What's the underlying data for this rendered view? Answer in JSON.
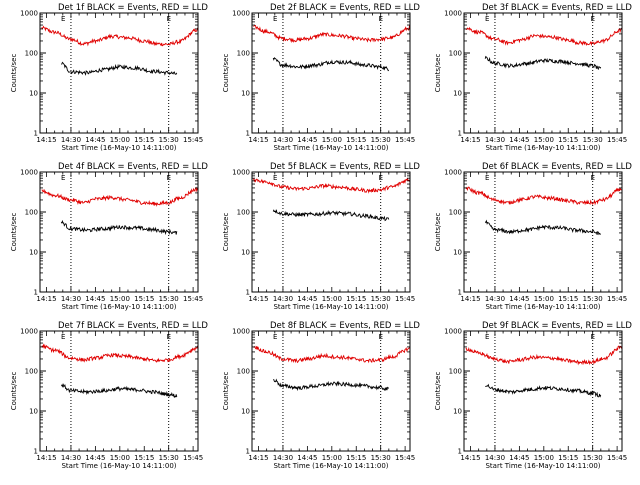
{
  "colors": {
    "events": "#000000",
    "lld": "#e00000",
    "axes": "#000000",
    "background": "#ffffff"
  },
  "shared": {
    "xlabel": "Start Time (16-May-10 14:11:00)",
    "ylabel": "Counts/sec",
    "x_tick_labels": [
      "14:15",
      "14:30",
      "14:45",
      "15:00",
      "15:15",
      "15:30",
      "15:45"
    ],
    "y_tick_labels": [
      "1",
      "10",
      "100",
      "1000"
    ],
    "marker_label": "E",
    "dotted_lines_at": [
      "14:30",
      "15:30"
    ]
  },
  "chart_data": [
    {
      "type": "line",
      "title": "Det 1f BLACK = Events, RED = LLD",
      "xlabel": "Start Time (16-May-10 14:11:00)",
      "ylabel": "Counts/sec",
      "x_range": [
        "14:11",
        "15:48"
      ],
      "ylim": [
        1,
        1000
      ],
      "y_scale": "log",
      "series": [
        {
          "color": "red",
          "x": [
            "14:12",
            "14:20",
            "14:30",
            "14:38",
            "14:45",
            "14:55",
            "15:05",
            "15:15",
            "15:22",
            "15:30",
            "15:36",
            "15:48"
          ],
          "y": [
            420,
            330,
            220,
            170,
            200,
            260,
            240,
            200,
            170,
            165,
            190,
            380
          ]
        },
        {
          "color": "black",
          "x": [
            "14:24",
            "14:30",
            "14:40",
            "14:50",
            "15:00",
            "15:10",
            "15:20",
            "15:30",
            "15:35"
          ],
          "y": [
            55,
            34,
            32,
            38,
            45,
            42,
            35,
            32,
            30
          ]
        }
      ]
    },
    {
      "type": "line",
      "title": "Det 2f BLACK = Events, RED = LLD",
      "xlabel": "Start Time (16-May-10 14:11:00)",
      "ylabel": "Counts/sec",
      "x_range": [
        "14:11",
        "15:48"
      ],
      "ylim": [
        1,
        1000
      ],
      "y_scale": "log",
      "series": [
        {
          "color": "red",
          "x": [
            "14:12",
            "14:20",
            "14:30",
            "14:38",
            "14:45",
            "14:55",
            "15:05",
            "15:15",
            "15:22",
            "15:30",
            "15:36",
            "15:48"
          ],
          "y": [
            450,
            340,
            230,
            210,
            230,
            290,
            270,
            230,
            210,
            220,
            240,
            420
          ]
        },
        {
          "color": "black",
          "x": [
            "14:24",
            "14:30",
            "14:40",
            "14:50",
            "15:00",
            "15:10",
            "15:20",
            "15:30",
            "15:35"
          ],
          "y": [
            70,
            50,
            45,
            50,
            60,
            58,
            50,
            45,
            40
          ]
        }
      ]
    },
    {
      "type": "line",
      "title": "Det 3f BLACK = Events, RED = LLD",
      "xlabel": "Start Time (16-May-10 14:11:00)",
      "ylabel": "Counts/sec",
      "x_range": [
        "14:11",
        "15:48"
      ],
      "ylim": [
        1,
        1000
      ],
      "y_scale": "log",
      "series": [
        {
          "color": "red",
          "x": [
            "14:12",
            "14:20",
            "14:30",
            "14:38",
            "14:45",
            "14:55",
            "15:05",
            "15:15",
            "15:22",
            "15:30",
            "15:36",
            "15:48"
          ],
          "y": [
            420,
            330,
            220,
            180,
            210,
            270,
            250,
            210,
            180,
            170,
            200,
            380
          ]
        },
        {
          "color": "black",
          "x": [
            "14:24",
            "14:30",
            "14:40",
            "14:50",
            "15:00",
            "15:10",
            "15:20",
            "15:30",
            "15:35"
          ],
          "y": [
            75,
            55,
            48,
            55,
            65,
            62,
            55,
            48,
            40
          ]
        }
      ]
    },
    {
      "type": "line",
      "title": "Det 4f BLACK = Events, RED = LLD",
      "xlabel": "Start Time (16-May-10 14:11:00)",
      "ylabel": "Counts/sec",
      "x_range": [
        "14:11",
        "15:48"
      ],
      "ylim": [
        1,
        1000
      ],
      "y_scale": "log",
      "series": [
        {
          "color": "red",
          "x": [
            "14:12",
            "14:20",
            "14:30",
            "14:38",
            "14:45",
            "14:55",
            "15:05",
            "15:15",
            "15:22",
            "15:30",
            "15:36",
            "15:48"
          ],
          "y": [
            340,
            260,
            200,
            170,
            210,
            230,
            200,
            170,
            160,
            170,
            220,
            380
          ]
        },
        {
          "color": "black",
          "x": [
            "14:24",
            "14:30",
            "14:40",
            "14:50",
            "15:00",
            "15:10",
            "15:20",
            "15:30",
            "15:35"
          ],
          "y": [
            55,
            38,
            35,
            38,
            42,
            40,
            36,
            32,
            30
          ]
        }
      ]
    },
    {
      "type": "line",
      "title": "Det 5f BLACK = Events, RED = LLD",
      "xlabel": "Start Time (16-May-10 14:11:00)",
      "ylabel": "Counts/sec",
      "x_range": [
        "14:11",
        "15:48"
      ],
      "ylim": [
        1,
        1000
      ],
      "y_scale": "log",
      "series": [
        {
          "color": "red",
          "x": [
            "14:12",
            "14:20",
            "14:30",
            "14:38",
            "14:45",
            "14:55",
            "15:05",
            "15:15",
            "15:22",
            "15:30",
            "15:36",
            "15:48"
          ],
          "y": [
            650,
            560,
            420,
            380,
            390,
            450,
            420,
            370,
            340,
            360,
            420,
            650
          ]
        },
        {
          "color": "black",
          "x": [
            "14:24",
            "14:30",
            "14:40",
            "14:50",
            "15:00",
            "15:10",
            "15:20",
            "15:30",
            "15:35"
          ],
          "y": [
            110,
            90,
            85,
            88,
            95,
            90,
            80,
            70,
            65
          ]
        }
      ]
    },
    {
      "type": "line",
      "title": "Det 6f BLACK = Events, RED = LLD",
      "xlabel": "Start Time (16-May-10 14:11:00)",
      "ylabel": "Counts/sec",
      "x_range": [
        "14:11",
        "15:48"
      ],
      "ylim": [
        1,
        1000
      ],
      "y_scale": "log",
      "series": [
        {
          "color": "red",
          "x": [
            "14:12",
            "14:20",
            "14:30",
            "14:38",
            "14:45",
            "14:55",
            "15:05",
            "15:15",
            "15:22",
            "15:30",
            "15:36",
            "15:48"
          ],
          "y": [
            400,
            300,
            200,
            170,
            200,
            240,
            220,
            190,
            170,
            170,
            200,
            380
          ]
        },
        {
          "color": "black",
          "x": [
            "14:24",
            "14:30",
            "14:40",
            "14:50",
            "15:00",
            "15:10",
            "15:20",
            "15:30",
            "15:35"
          ],
          "y": [
            55,
            36,
            32,
            36,
            42,
            40,
            35,
            32,
            28
          ]
        }
      ]
    },
    {
      "type": "line",
      "title": "Det 7f BLACK = Events, RED = LLD",
      "xlabel": "Start Time (16-May-10 14:11:00)",
      "ylabel": "Counts/sec",
      "x_range": [
        "14:11",
        "15:48"
      ],
      "ylim": [
        1,
        1000
      ],
      "y_scale": "log",
      "series": [
        {
          "color": "red",
          "x": [
            "14:12",
            "14:20",
            "14:30",
            "14:38",
            "14:45",
            "14:55",
            "15:05",
            "15:15",
            "15:22",
            "15:30",
            "15:36",
            "15:48"
          ],
          "y": [
            420,
            330,
            210,
            190,
            210,
            250,
            230,
            200,
            180,
            190,
            230,
            380
          ]
        },
        {
          "color": "black",
          "x": [
            "14:24",
            "14:30",
            "14:40",
            "14:50",
            "15:00",
            "15:10",
            "15:20",
            "15:30",
            "15:35"
          ],
          "y": [
            45,
            32,
            30,
            32,
            36,
            34,
            30,
            26,
            24
          ]
        }
      ]
    },
    {
      "type": "line",
      "title": "Det 8f BLACK = Events, RED = LLD",
      "xlabel": "Start Time (16-May-10 14:11:00)",
      "ylabel": "Counts/sec",
      "x_range": [
        "14:11",
        "15:48"
      ],
      "ylim": [
        1,
        1000
      ],
      "y_scale": "log",
      "series": [
        {
          "color": "red",
          "x": [
            "14:12",
            "14:20",
            "14:30",
            "14:38",
            "14:45",
            "14:55",
            "15:05",
            "15:15",
            "15:22",
            "15:30",
            "15:36",
            "15:48"
          ],
          "y": [
            400,
            300,
            200,
            180,
            200,
            240,
            220,
            200,
            180,
            190,
            220,
            360
          ]
        },
        {
          "color": "black",
          "x": [
            "14:24",
            "14:30",
            "14:40",
            "14:50",
            "15:00",
            "15:10",
            "15:20",
            "15:30",
            "15:35"
          ],
          "y": [
            60,
            42,
            38,
            42,
            48,
            46,
            42,
            38,
            35
          ]
        }
      ]
    },
    {
      "type": "line",
      "title": "Det 9f BLACK = Events, RED = LLD",
      "xlabel": "Start Time (16-May-10 14:11:00)",
      "ylabel": "Counts/sec",
      "x_range": [
        "14:11",
        "15:48"
      ],
      "ylim": [
        1,
        1000
      ],
      "y_scale": "log",
      "series": [
        {
          "color": "red",
          "x": [
            "14:12",
            "14:20",
            "14:30",
            "14:38",
            "14:45",
            "14:55",
            "15:05",
            "15:15",
            "15:22",
            "15:30",
            "15:36",
            "15:48"
          ],
          "y": [
            360,
            280,
            200,
            170,
            190,
            220,
            210,
            180,
            165,
            170,
            200,
            400
          ]
        },
        {
          "color": "black",
          "x": [
            "14:24",
            "14:30",
            "14:40",
            "14:50",
            "15:00",
            "15:10",
            "15:20",
            "15:30",
            "15:35"
          ],
          "y": [
            45,
            34,
            30,
            34,
            38,
            36,
            32,
            28,
            24
          ]
        }
      ]
    }
  ]
}
